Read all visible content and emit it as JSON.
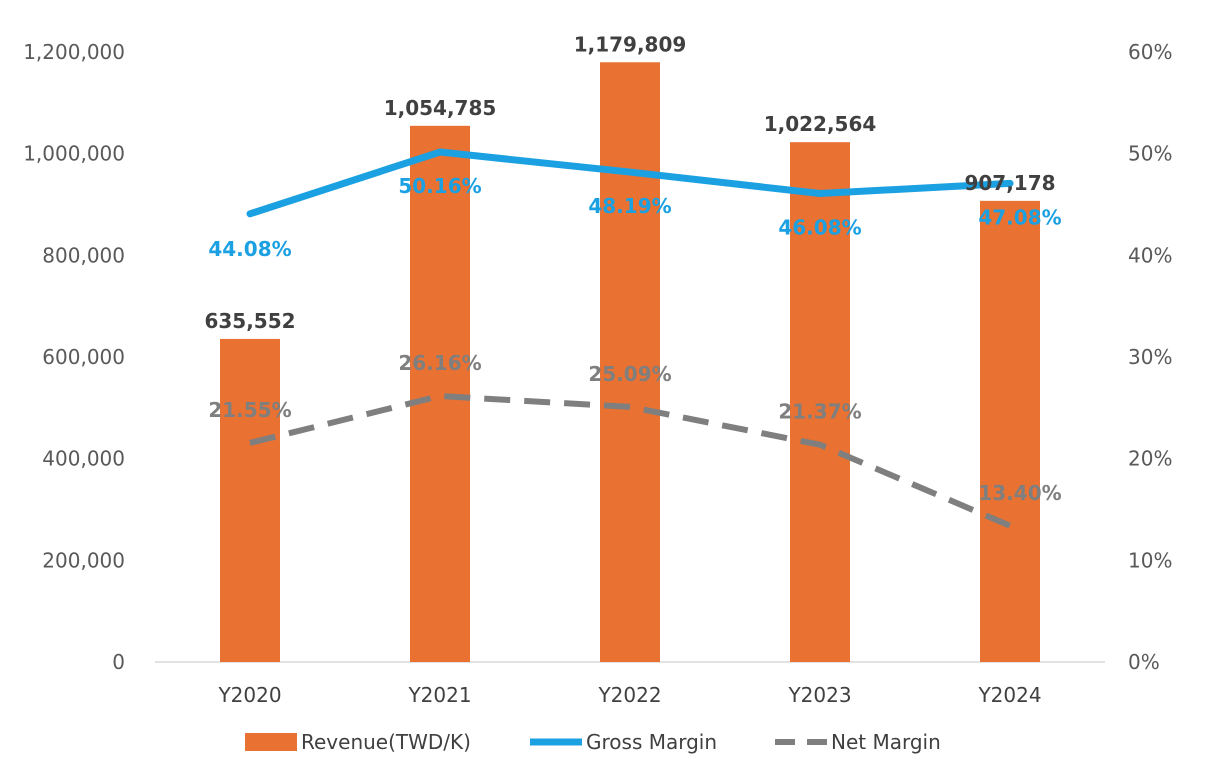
{
  "chart_data": {
    "type": "bar",
    "title": "",
    "categories": [
      "Y2020",
      "Y2021",
      "Y2022",
      "Y2023",
      "Y2024"
    ],
    "series": [
      {
        "name": "Revenue(TWD/K)",
        "type": "bar",
        "axis": "left",
        "color": "#E97132",
        "values": [
          635552,
          1054785,
          1179809,
          1022564,
          907178
        ],
        "labels": [
          "635,552",
          "1,054,785",
          "1,179,809",
          "1,022,564",
          "907,178"
        ]
      },
      {
        "name": "Gross Margin",
        "type": "line",
        "axis": "right",
        "color": "#1BA1E2",
        "values": [
          44.08,
          50.16,
          48.19,
          46.08,
          47.08
        ],
        "labels": [
          "44.08%",
          "50.16%",
          "48.19%",
          "46.08%",
          "47.08%"
        ]
      },
      {
        "name": "Net Margin",
        "type": "line",
        "style": "dashed",
        "axis": "right",
        "color": "#7F7F7F",
        "values": [
          21.55,
          26.16,
          25.09,
          21.37,
          13.4
        ],
        "labels": [
          "21.55%",
          "26.16%",
          "25.09%",
          "21.37%",
          "13.40%"
        ]
      }
    ],
    "y_left": {
      "range": [
        0,
        1200000
      ],
      "ticks": [
        0,
        200000,
        400000,
        600000,
        800000,
        1000000,
        1200000
      ],
      "tick_labels": [
        "0",
        "200,000",
        "400,000",
        "600,000",
        "800,000",
        "1,000,000",
        "1,200,000"
      ]
    },
    "y_right": {
      "range": [
        0,
        60
      ],
      "ticks": [
        0,
        10,
        20,
        30,
        40,
        50,
        60
      ],
      "tick_labels": [
        "0%",
        "10%",
        "20%",
        "30%",
        "40%",
        "50%",
        "60%"
      ]
    },
    "grid": false,
    "legend_position": "bottom"
  }
}
